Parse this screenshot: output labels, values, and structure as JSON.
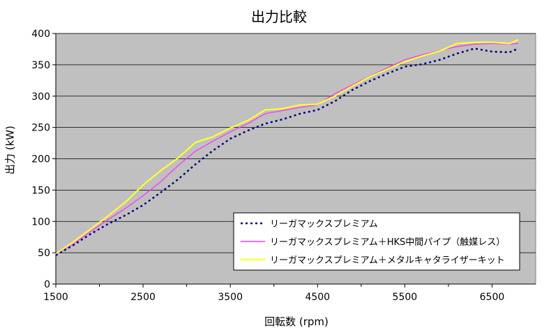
{
  "chart_data": {
    "type": "line",
    "title": "出力比較",
    "xlabel": "回転数 (rpm)",
    "ylabel": "出力 (kW)",
    "xlim": [
      1500,
      7000
    ],
    "ylim": [
      0,
      400
    ],
    "xticks": [
      1500,
      2500,
      3500,
      4500,
      5500,
      6500
    ],
    "yticks": [
      0,
      50,
      100,
      150,
      200,
      250,
      300,
      350,
      400
    ],
    "grid": "horizontal",
    "plot_background": "#c0c0c0",
    "legend_position": "bottom-right",
    "series": [
      {
        "name": "リーガマックスプレミアム",
        "color": "#000080",
        "style": "dotted",
        "x": [
          1500,
          1700,
          1900,
          2100,
          2300,
          2500,
          2700,
          2900,
          3100,
          3300,
          3500,
          3700,
          3900,
          4100,
          4300,
          4500,
          4700,
          4900,
          5100,
          5300,
          5500,
          5700,
          5900,
          6100,
          6300,
          6500,
          6700,
          6800
        ],
        "y": [
          46,
          62,
          80,
          96,
          110,
          126,
          146,
          167,
          191,
          213,
          232,
          245,
          256,
          263,
          272,
          278,
          292,
          310,
          324,
          336,
          347,
          351,
          358,
          368,
          376,
          371,
          370,
          376
        ]
      },
      {
        "name": "リーガマックスプレミアム＋HKS中間パイプ（触媒レス）",
        "color": "#ff33ff",
        "style": "solid",
        "x": [
          1500,
          1700,
          1900,
          2100,
          2300,
          2500,
          2700,
          2900,
          3100,
          3300,
          3500,
          3700,
          3900,
          4100,
          4300,
          4500,
          4700,
          4900,
          5100,
          5300,
          5500,
          5700,
          5900,
          6100,
          6300,
          6500,
          6700,
          6800
        ],
        "y": [
          47,
          64,
          84,
          103,
          121,
          141,
          163,
          189,
          212,
          228,
          243,
          256,
          272,
          277,
          282,
          286,
          304,
          318,
          332,
          345,
          358,
          366,
          373,
          379,
          383,
          384,
          383,
          384
        ]
      },
      {
        "name": "リーガマックスプレミアム＋メタルキャタライザーキット",
        "color": "#ffff33",
        "style": "solid",
        "x": [
          1500,
          1700,
          1900,
          2100,
          2300,
          2500,
          2700,
          2900,
          3100,
          3300,
          3500,
          3700,
          3900,
          4100,
          4300,
          4500,
          4700,
          4900,
          5100,
          5300,
          5500,
          5700,
          5900,
          6100,
          6300,
          6500,
          6700,
          6800
        ],
        "y": [
          48,
          67,
          88,
          109,
          131,
          158,
          181,
          201,
          226,
          235,
          249,
          261,
          278,
          280,
          286,
          287,
          300,
          316,
          331,
          343,
          355,
          364,
          372,
          384,
          386,
          386,
          384,
          390
        ]
      }
    ]
  }
}
